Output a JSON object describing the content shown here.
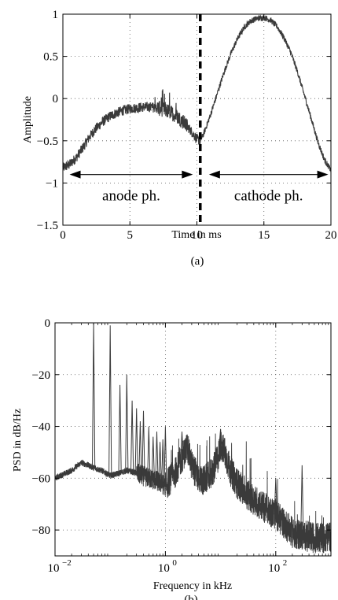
{
  "chart_data": [
    {
      "id": "a",
      "type": "line",
      "xlabel": "Time in ms",
      "ylabel": "Amplitude",
      "caption": "(a)",
      "xlim": [
        0,
        20
      ],
      "ylim": [
        -1.5,
        1
      ],
      "xticks": [
        0,
        5,
        10,
        15,
        20
      ],
      "yticks": [
        -1.5,
        -1,
        -0.5,
        0,
        0.5,
        1
      ],
      "grid": "dotted",
      "color": "#3a3a3a",
      "x": [
        0,
        0.5,
        1,
        1.5,
        2,
        2.5,
        3,
        3.5,
        4,
        4.5,
        5,
        5.5,
        6,
        6.5,
        7,
        7.5,
        8,
        8.5,
        9,
        9.5,
        10,
        10.25,
        10.5,
        11,
        11.5,
        12,
        12.5,
        13,
        13.5,
        14,
        14.5,
        15,
        15.5,
        16,
        16.5,
        17,
        17.5,
        18,
        18.5,
        19,
        19.5,
        20
      ],
      "y": [
        -0.82,
        -0.78,
        -0.7,
        -0.58,
        -0.45,
        -0.35,
        -0.27,
        -0.21,
        -0.17,
        -0.14,
        -0.12,
        -0.11,
        -0.1,
        -0.1,
        -0.11,
        -0.13,
        -0.16,
        -0.21,
        -0.28,
        -0.37,
        -0.48,
        -0.5,
        -0.42,
        -0.2,
        0.05,
        0.3,
        0.52,
        0.7,
        0.84,
        0.92,
        0.95,
        0.96,
        0.93,
        0.85,
        0.72,
        0.55,
        0.32,
        0.05,
        -0.22,
        -0.5,
        -0.72,
        -0.85
      ],
      "phase_boundary": 10.25,
      "annotations": [
        {
          "text": "anode ph.",
          "x_from": 0.5,
          "x_to": 9.7,
          "y": -0.9,
          "label_y": -1.15
        },
        {
          "text": "cathode ph.",
          "x_from": 10.9,
          "x_to": 19.8,
          "y": -0.9,
          "label_y": -1.15
        }
      ]
    },
    {
      "id": "b",
      "type": "line",
      "xlabel": "Frequency in kHz",
      "ylabel": "PSD in dB/Hz",
      "caption": "(b)",
      "xscale": "log",
      "xlim": [
        0.01,
        1000
      ],
      "ylim": [
        -90,
        0
      ],
      "xticks": [
        0.01,
        1,
        100
      ],
      "xtick_labels": [
        [
          "10",
          "−2"
        ],
        [
          "10",
          "0"
        ],
        [
          "10",
          "2"
        ]
      ],
      "yticks": [
        -80,
        -60,
        -40,
        -20,
        0
      ],
      "grid": "dotted",
      "color": "#3a3a3a",
      "floor": [
        [
          0.01,
          -60
        ],
        [
          0.02,
          -57
        ],
        [
          0.03,
          -54
        ],
        [
          0.04,
          -55
        ],
        [
          0.05,
          -56
        ],
        [
          0.07,
          -57
        ],
        [
          0.1,
          -59
        ],
        [
          0.15,
          -58
        ],
        [
          0.2,
          -57
        ],
        [
          0.3,
          -58
        ],
        [
          0.5,
          -60
        ],
        [
          0.7,
          -61
        ],
        [
          1,
          -63
        ],
        [
          1.5,
          -58
        ],
        [
          2,
          -52
        ],
        [
          2.5,
          -48
        ],
        [
          3,
          -55
        ],
        [
          4,
          -60
        ],
        [
          5,
          -61
        ],
        [
          7,
          -58
        ],
        [
          9,
          -52
        ],
        [
          10,
          -47
        ],
        [
          12,
          -50
        ],
        [
          15,
          -57
        ],
        [
          20,
          -62
        ],
        [
          30,
          -66
        ],
        [
          50,
          -70
        ],
        [
          70,
          -72
        ],
        [
          100,
          -74
        ],
        [
          150,
          -78
        ],
        [
          200,
          -81
        ],
        [
          300,
          -82
        ],
        [
          500,
          -83
        ],
        [
          1000,
          -83
        ]
      ],
      "peaks": [
        {
          "f": 0.05,
          "db": 0
        },
        {
          "f": 0.1,
          "db": -1
        },
        {
          "f": 0.15,
          "db": -24
        },
        {
          "f": 0.2,
          "db": -20
        },
        {
          "f": 0.25,
          "db": -30
        },
        {
          "f": 0.3,
          "db": -33
        },
        {
          "f": 0.35,
          "db": -38
        },
        {
          "f": 0.4,
          "db": -34
        },
        {
          "f": 0.5,
          "db": -40
        },
        {
          "f": 0.6,
          "db": -44
        },
        {
          "f": 0.7,
          "db": -42
        },
        {
          "f": 0.8,
          "db": -46
        },
        {
          "f": 0.9,
          "db": -45
        },
        {
          "f": 1.0,
          "db": -40
        },
        {
          "f": 2.0,
          "db": -42
        },
        {
          "f": 10,
          "db": -41
        },
        {
          "f": 100,
          "db": -60
        },
        {
          "f": 300,
          "db": -55
        }
      ],
      "band_width_db": 6
    }
  ]
}
